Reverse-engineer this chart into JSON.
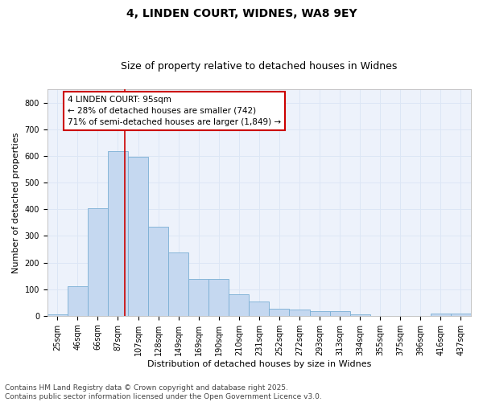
{
  "title_line1": "4, LINDEN COURT, WIDNES, WA8 9EY",
  "title_line2": "Size of property relative to detached houses in Widnes",
  "xlabel": "Distribution of detached houses by size in Widnes",
  "ylabel": "Number of detached properties",
  "categories": [
    "25sqm",
    "46sqm",
    "66sqm",
    "87sqm",
    "107sqm",
    "128sqm",
    "149sqm",
    "169sqm",
    "190sqm",
    "210sqm",
    "231sqm",
    "252sqm",
    "272sqm",
    "293sqm",
    "313sqm",
    "334sqm",
    "355sqm",
    "375sqm",
    "396sqm",
    "416sqm",
    "437sqm"
  ],
  "values": [
    5,
    110,
    405,
    620,
    597,
    335,
    238,
    138,
    138,
    80,
    55,
    25,
    22,
    17,
    18,
    5,
    0,
    0,
    0,
    8,
    8
  ],
  "bar_color": "#c5d8f0",
  "bar_edge_color": "#7aafd4",
  "grid_color": "#dce6f5",
  "background_color": "#edf2fb",
  "vline_color": "#cc0000",
  "vline_x": 3.33,
  "annotation_text": "4 LINDEN COURT: 95sqm\n← 28% of detached houses are smaller (742)\n71% of semi-detached houses are larger (1,849) →",
  "annotation_box_edgecolor": "#cc0000",
  "ylim": [
    0,
    850
  ],
  "yticks": [
    0,
    100,
    200,
    300,
    400,
    500,
    600,
    700,
    800
  ],
  "footer_line1": "Contains HM Land Registry data © Crown copyright and database right 2025.",
  "footer_line2": "Contains public sector information licensed under the Open Government Licence v3.0.",
  "title_fontsize": 10,
  "subtitle_fontsize": 9,
  "axis_label_fontsize": 8,
  "tick_fontsize": 7,
  "annotation_fontsize": 7.5,
  "footer_fontsize": 6.5
}
